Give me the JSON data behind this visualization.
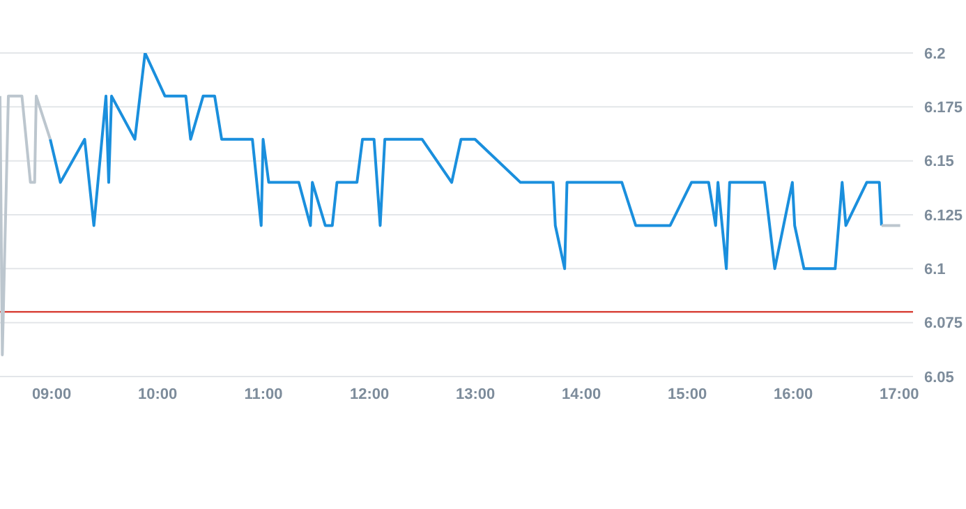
{
  "chart_data": {
    "type": "line",
    "xlim": [
      8.513,
      17.13
    ],
    "ylim": [
      6.05,
      6.2
    ],
    "xticks": [
      {
        "value": 9,
        "label": "09:00"
      },
      {
        "value": 10,
        "label": "10:00"
      },
      {
        "value": 11,
        "label": "11:00"
      },
      {
        "value": 12,
        "label": "12:00"
      },
      {
        "value": 13,
        "label": "13:00"
      },
      {
        "value": 14,
        "label": "14:00"
      },
      {
        "value": 15,
        "label": "15:00"
      },
      {
        "value": 16,
        "label": "16:00"
      },
      {
        "value": 17,
        "label": "17:00"
      }
    ],
    "yticks": [
      6.05,
      6.075,
      6.1,
      6.125,
      6.15,
      6.175,
      6.2
    ],
    "grid": "y",
    "marker": "none",
    "line_style": "solid",
    "ref_lines": [
      {
        "axis": "y",
        "value": 6.08,
        "color": "#d9453b"
      }
    ],
    "series": [
      {
        "color": "#bcc6ce",
        "x": [
          8.513,
          8.535,
          8.592,
          8.72,
          8.8,
          8.84,
          8.855,
          8.987
        ],
        "values": [
          6.18,
          6.06,
          6.18,
          6.18,
          6.14,
          6.14,
          6.18,
          6.16
        ]
      },
      {
        "color": "#1a8fdd",
        "x": [
          8.987,
          9.083,
          9.312,
          9.399,
          9.513,
          9.539,
          9.566,
          9.786,
          9.882,
          10.07,
          10.267,
          10.312,
          10.43,
          10.539,
          10.605,
          10.895,
          10.978,
          10.996,
          11.049,
          11.333,
          11.443,
          11.461,
          11.583,
          11.649,
          11.693,
          11.882,
          11.934,
          12.043,
          12.101,
          12.145,
          12.496,
          12.776,
          12.864,
          12.996,
          13.425,
          13.733,
          13.754,
          13.842,
          13.864,
          14.382,
          14.513,
          14.838,
          15.039,
          15.201,
          15.267,
          15.289,
          15.368,
          15.399,
          15.728,
          15.825,
          15.991,
          16.013,
          16.101,
          16.395,
          16.461,
          16.496,
          16.693,
          16.812,
          16.833
        ],
        "values": [
          6.16,
          6.14,
          6.16,
          6.12,
          6.18,
          6.14,
          6.18,
          6.16,
          6.2,
          6.18,
          6.18,
          6.16,
          6.18,
          6.18,
          6.16,
          6.16,
          6.12,
          6.16,
          6.14,
          6.14,
          6.12,
          6.14,
          6.12,
          6.12,
          6.14,
          6.14,
          6.16,
          6.16,
          6.12,
          6.16,
          6.16,
          6.14,
          6.16,
          6.16,
          6.14,
          6.14,
          6.12,
          6.1,
          6.14,
          6.14,
          6.12,
          6.12,
          6.14,
          6.14,
          6.12,
          6.14,
          6.1,
          6.14,
          6.14,
          6.1,
          6.14,
          6.12,
          6.1,
          6.1,
          6.14,
          6.12,
          6.14,
          6.14,
          6.12
        ]
      },
      {
        "color": "#bcc6ce",
        "x": [
          16.833,
          17.009
        ],
        "values": [
          6.12,
          6.12
        ]
      }
    ]
  }
}
